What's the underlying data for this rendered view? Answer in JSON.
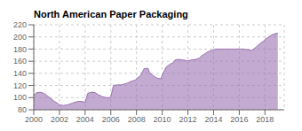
{
  "chart_data": {
    "type": "area",
    "title": "North American Paper Packaging",
    "x": [
      2000.0,
      2000.2,
      2000.5,
      2000.8,
      2001.0,
      2001.3,
      2001.6,
      2001.9,
      2002.0,
      2002.3,
      2002.6,
      2002.9,
      2003.0,
      2003.3,
      2003.6,
      2003.9,
      2004.0,
      2004.2,
      2004.5,
      2004.8,
      2005.0,
      2005.3,
      2005.6,
      2005.9,
      2006.0,
      2006.2,
      2006.5,
      2006.8,
      2007.0,
      2007.3,
      2007.6,
      2007.9,
      2008.0,
      2008.3,
      2008.6,
      2008.9,
      2009.0,
      2009.3,
      2009.6,
      2009.9,
      2010.0,
      2010.3,
      2010.6,
      2010.9,
      2011.0,
      2011.3,
      2011.6,
      2011.9,
      2012.0,
      2012.3,
      2012.6,
      2012.9,
      2013.0,
      2013.3,
      2013.6,
      2013.9,
      2014.0,
      2014.3,
      2014.6,
      2014.9,
      2015.0,
      2015.3,
      2015.6,
      2015.9,
      2016.0,
      2016.3,
      2016.6,
      2016.9,
      2017.0,
      2017.3,
      2017.6,
      2017.9,
      2018.0,
      2018.3,
      2018.6,
      2018.9,
      2019.0
    ],
    "values": [
      103,
      108,
      109,
      107,
      104,
      99,
      94,
      90,
      88,
      87,
      88,
      90,
      91,
      93,
      94,
      93,
      92,
      107,
      109,
      108,
      105,
      102,
      100,
      100,
      101,
      120,
      121,
      121,
      122,
      124,
      127,
      129,
      131,
      136,
      148,
      148,
      142,
      136,
      132,
      131,
      137,
      150,
      155,
      158,
      162,
      163,
      162,
      161,
      161,
      162,
      163,
      165,
      168,
      172,
      176,
      178,
      179,
      180,
      180,
      180,
      180,
      180,
      180,
      180,
      180,
      180,
      179,
      178,
      178,
      183,
      189,
      193,
      196,
      200,
      204,
      206,
      206
    ],
    "color": "#9B72B0",
    "xlim": [
      2000,
      2019.5
    ],
    "ylim": [
      80,
      220
    ],
    "xticks": [
      2000,
      2002,
      2004,
      2006,
      2008,
      2010,
      2012,
      2014,
      2016,
      2018
    ],
    "yticks": [
      80,
      100,
      120,
      140,
      160,
      180,
      200,
      220
    ],
    "grid": true
  }
}
